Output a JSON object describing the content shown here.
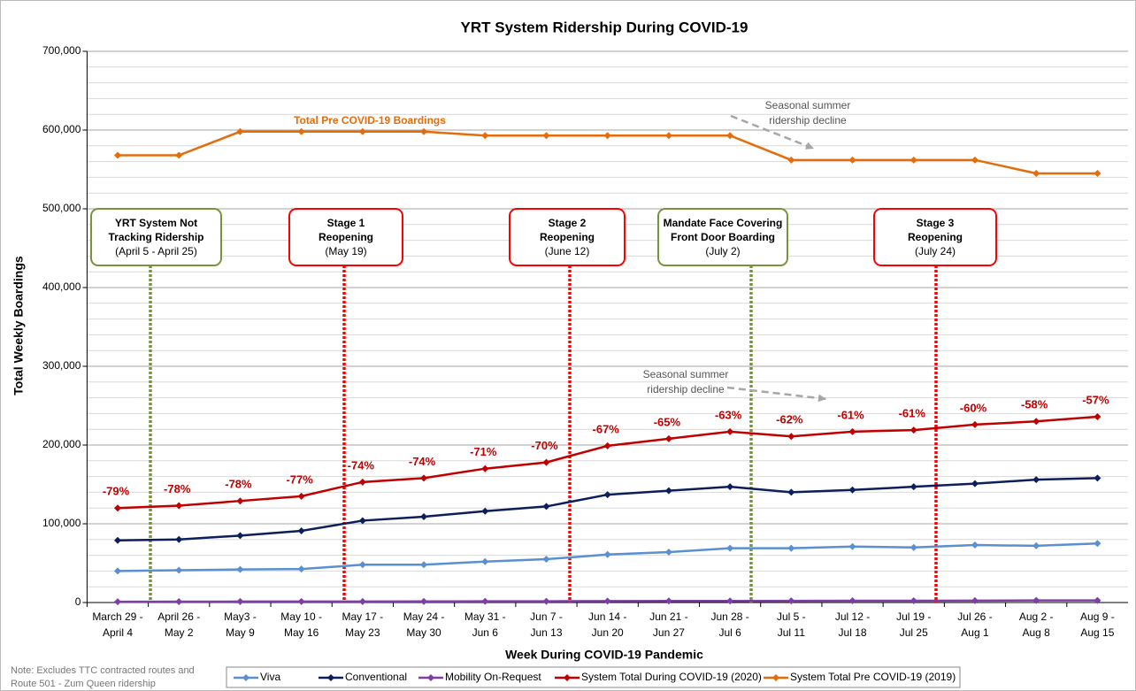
{
  "chart_data": {
    "type": "line",
    "title": "YRT System Ridership During COVID-19",
    "x_label": "Week During COVID-19 Pandemic",
    "y_label": "Total Weekly Boardings",
    "categories": [
      [
        "March 29 -",
        "April 4"
      ],
      [
        "April 26 -",
        "May 2"
      ],
      [
        "May3 -",
        "May 9"
      ],
      [
        "May 10 -",
        "May 16"
      ],
      [
        "May 17 -",
        "May 23"
      ],
      [
        "May 24 -",
        "May 30"
      ],
      [
        "May 31 -",
        "Jun 6"
      ],
      [
        "Jun 7 -",
        "Jun 13"
      ],
      [
        "Jun 14 -",
        "Jun 20"
      ],
      [
        "Jun 21 -",
        "Jun 27"
      ],
      [
        "Jun 28 -",
        "Jul 6"
      ],
      [
        "Jul 5 -",
        "Jul 11"
      ],
      [
        "Jul 12 -",
        "Jul 18"
      ],
      [
        "Jul 19 -",
        "Jul 25"
      ],
      [
        "Jul 26 -",
        "Aug 1"
      ],
      [
        "Aug 2 -",
        "Aug 8"
      ],
      [
        "Aug 9 -",
        "Aug 15"
      ]
    ],
    "series": [
      {
        "name": "Viva",
        "color": "#5a8fd2",
        "values": [
          40000,
          41000,
          42000,
          42500,
          48000,
          48000,
          52000,
          55000,
          61000,
          64000,
          69000,
          69000,
          71000,
          70000,
          73000,
          72000,
          75000
        ]
      },
      {
        "name": "Conventional",
        "color": "#0c1f5a",
        "values": [
          79000,
          80000,
          85000,
          91000,
          104000,
          109000,
          116000,
          122000,
          137000,
          142000,
          147000,
          140000,
          143000,
          147000,
          151000,
          156000,
          158000
        ]
      },
      {
        "name": "Mobility On-Request",
        "color": "#7c3fa6",
        "values": [
          1000,
          1100,
          1200,
          1200,
          1300,
          1400,
          1500,
          1600,
          1800,
          1900,
          2000,
          2100,
          2200,
          2300,
          2400,
          2600,
          2700
        ]
      },
      {
        "name": "System Total During COVID-19 (2020)",
        "color": "#c00000",
        "values": [
          120000,
          123000,
          129000,
          135000,
          153000,
          158000,
          170000,
          178000,
          199000,
          208000,
          217000,
          211000,
          217000,
          219000,
          226000,
          230000,
          236000
        ]
      },
      {
        "name": "System Total Pre COVID-19 (2019)",
        "color": "#e46c0a",
        "values": [
          568000,
          568000,
          598000,
          598000,
          598000,
          598000,
          593000,
          593000,
          593000,
          593000,
          593000,
          562000,
          562000,
          562000,
          562000,
          545000,
          545000
        ]
      }
    ],
    "percent_labels": [
      "-79%",
      "-78%",
      "-78%",
      "-77%",
      "-74%",
      "-74%",
      "-71%",
      "-70%",
      "-67%",
      "-65%",
      "-63%",
      "-62%",
      "-61%",
      "-61%",
      "-60%",
      "-58%",
      "-57%"
    ],
    "ylim": [
      0,
      700000
    ],
    "yticks": [
      0,
      {
        "value": 100000,
        "label": "100,000"
      },
      {
        "value": 200000,
        "label": "200,000"
      },
      {
        "value": 300000,
        "label": "300,000"
      },
      {
        "value": 400000,
        "label": "400,000"
      },
      {
        "value": 500000,
        "label": "500,000"
      },
      {
        "value": 600000,
        "label": "600,000"
      },
      {
        "value": 700000,
        "label": "700,000"
      }
    ],
    "minor_grid": [
      20000,
      40000,
      60000,
      80000,
      120000,
      140000,
      160000,
      180000,
      220000,
      240000,
      260000,
      280000,
      320000,
      340000,
      360000,
      380000,
      420000,
      440000,
      460000,
      480000,
      520000,
      540000,
      560000,
      580000,
      620000,
      640000,
      660000,
      680000
    ],
    "grid": true,
    "annotations": {
      "pre_covid": "Total Pre COVID-19 Boardings",
      "seasonal_top": [
        "Seasonal summer",
        "ridership decline"
      ],
      "seasonal_bottom": [
        "Seasonal summer",
        "ridership decline"
      ]
    },
    "events": [
      {
        "lines": [
          "YRT System Not",
          "Tracking Ridership",
          "(April 5 - April 25)"
        ],
        "color": "#77933c"
      },
      {
        "lines": [
          "Stage 1",
          "Reopening",
          "(May 19)"
        ],
        "color": "#ff0000"
      },
      {
        "lines": [
          "Stage 2",
          "Reopening",
          "(June 12)"
        ],
        "color": "#ff0000"
      },
      {
        "lines": [
          "Mandate Face Covering",
          "Front Door Boarding",
          "(July 2)"
        ],
        "color": "#77933c"
      },
      {
        "lines": [
          "Stage 3",
          "Reopening",
          "(July 24)"
        ],
        "color": "#ff0000"
      }
    ],
    "note": [
      "Note: Excludes TTC contracted routes and",
      "Route 501 - Zum Queen ridership"
    ]
  }
}
